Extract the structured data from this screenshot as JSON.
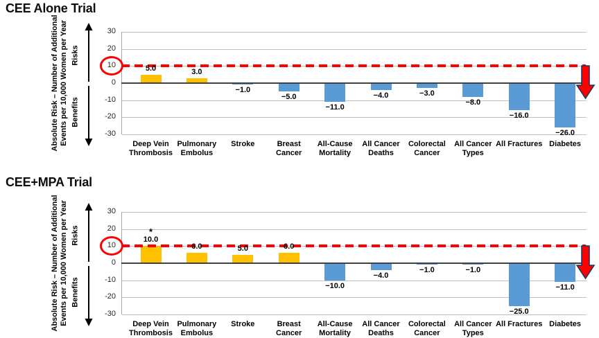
{
  "page": {
    "background": "#ffffff"
  },
  "colors": {
    "risk_bar": "#FFC000",
    "benefit_bar": "#5B9BD5",
    "threshold_red": "#FF0000",
    "arrow_outline": "#1F3864",
    "gridline": "#BFBFBF",
    "zero_line": "#404040",
    "text": "#000000"
  },
  "chart_data": [
    {
      "type": "bar",
      "title": "CEE Alone Trial",
      "ylabel": "Absolute Risk – Number of Additional\nEvents per 10,000 Women per Year",
      "axis_direction_labels": {
        "up": "Risks",
        "down": "Benefits"
      },
      "categories": [
        "Deep Vein\nThrombosis",
        "Pulmonary\nEmbolus",
        "Stroke",
        "Breast\nCancer",
        "All-Cause\nMortality",
        "All Cancer\nDeaths",
        "Colorectal\nCancer",
        "All Cancer\nTypes",
        "All Fractures",
        "Diabetes"
      ],
      "values": [
        5.0,
        3.0,
        -1.0,
        -5.0,
        -11.0,
        -4.0,
        -3.0,
        -8.0,
        -16.0,
        -26.0
      ],
      "value_labels": [
        "5.0",
        "3.0",
        "−1.0",
        "−5.0",
        "−11.0",
        "−4.0",
        "−3.0",
        "−8.0",
        "−16.0",
        "−26.0"
      ],
      "bar_color_rule": {
        "positive": "#FFC000",
        "negative": "#5B9BD5"
      },
      "ylim": [
        -30,
        30
      ],
      "yticks": [
        30,
        20,
        10,
        0,
        -10,
        -20,
        -30
      ],
      "ytick_labels": [
        "30",
        "20",
        "10",
        "0",
        "-10",
        "-20",
        "-30"
      ],
      "grid": true,
      "threshold_line": {
        "y": 10,
        "color": "#FF0000",
        "style": "dashed",
        "circled_tick": "10",
        "right_end_arrow": "down"
      },
      "point_annotations": []
    },
    {
      "type": "bar",
      "title": "CEE+MPA Trial",
      "ylabel": "Absolute Risk – Number of Additional\nEvents per 10,000 Women per Year",
      "axis_direction_labels": {
        "up": "Risks",
        "down": "Benefits"
      },
      "categories": [
        "Deep Vein\nThrombosis",
        "Pulmonary\nEmbolus",
        "Stroke",
        "Breast\nCancer",
        "All-Cause\nMortality",
        "All Cancer\nDeaths",
        "Colorectal\nCancer",
        "All Cancer\nTypes",
        "All Fractures",
        "Diabetes"
      ],
      "values": [
        10.0,
        6.0,
        5.0,
        6.0,
        -10.0,
        -4.0,
        -1.0,
        -1.0,
        -25.0,
        -11.0
      ],
      "value_labels": [
        "10.0",
        "6.0",
        "5.0",
        "6.0",
        "−10.0",
        "−4.0",
        "−1.0",
        "−1.0",
        "−25.0",
        "−11.0"
      ],
      "bar_color_rule": {
        "positive": "#FFC000",
        "negative": "#5B9BD5"
      },
      "ylim": [
        -30,
        30
      ],
      "yticks": [
        30,
        20,
        10,
        0,
        -10,
        -20,
        -30
      ],
      "ytick_labels": [
        "30",
        "20",
        "10",
        "0",
        "-10",
        "-20",
        "-30"
      ],
      "grid": true,
      "threshold_line": {
        "y": 10,
        "color": "#FF0000",
        "style": "dashed",
        "circled_tick": "10",
        "right_end_arrow": "down"
      },
      "point_annotations": [
        {
          "category_index": 0,
          "text": "*"
        }
      ]
    }
  ]
}
